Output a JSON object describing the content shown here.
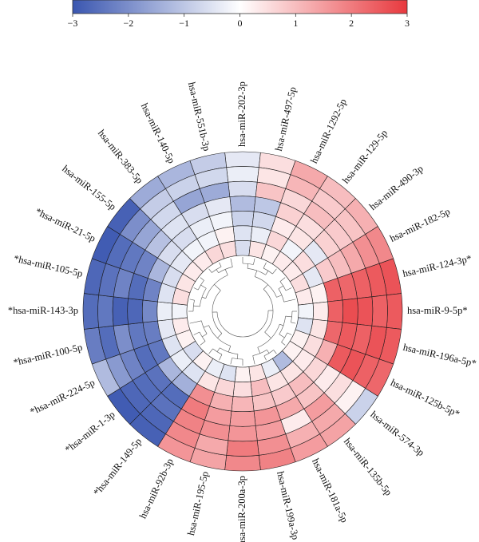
{
  "chart_data": {
    "type": "heatmap",
    "layout": "circular",
    "colorbar": {
      "ticks": [
        -3,
        -2,
        -1,
        0,
        1,
        2,
        3
      ],
      "colors": {
        "low": "#3a56b0",
        "mid": "#ffffff",
        "high": "#e8393e"
      }
    },
    "rows": [
      {
        "label": "hsa-miR-202-3p",
        "values": [
          -0.4,
          -0.3,
          -0.6,
          -1.2,
          -0.8,
          -0.5,
          -0.6
        ]
      },
      {
        "label": "hsa-miR-497-5p",
        "values": [
          0.5,
          0.4,
          0.9,
          -1.0,
          -0.7,
          -0.3,
          0.4
        ]
      },
      {
        "label": "hsa-miR-1292-5p",
        "values": [
          1.3,
          1.1,
          0.6,
          0.7,
          0.3,
          0.6,
          0.2
        ]
      },
      {
        "label": "hsa-miR-129-5p",
        "values": [
          1.0,
          0.8,
          1.0,
          0.5,
          0.4,
          -0.2,
          0.3
        ]
      },
      {
        "label": "hsa-miR-490-3p",
        "values": [
          1.2,
          0.9,
          0.8,
          0.7,
          -0.4,
          0.5,
          0.3
        ]
      },
      {
        "label": "hsa-miR-182-5p",
        "values": [
          1.8,
          1.7,
          1.3,
          1.0,
          0.8,
          -0.4,
          0.5
        ]
      },
      {
        "label": "hsa-miR-124-3p",
        "values": [
          2.6,
          2.5,
          2.4,
          2.3,
          2.4,
          0.2,
          0.3
        ],
        "marker": "*"
      },
      {
        "label": "hsa-miR-9-5p",
        "values": [
          2.5,
          2.4,
          2.6,
          2.7,
          2.4,
          0.3,
          -0.2
        ],
        "marker": "*"
      },
      {
        "label": "hsa-miR-196a-5p",
        "values": [
          2.5,
          2.6,
          2.4,
          2.5,
          2.3,
          0.4,
          -0.5
        ],
        "marker": "*"
      },
      {
        "label": "hsa-miR-125b-5p",
        "values": [
          2.3,
          2.4,
          2.6,
          2.5,
          1.2,
          0.5,
          0.2
        ],
        "marker": "*"
      },
      {
        "label": "hsa-miR-574-3p",
        "values": [
          -0.8,
          0.2,
          0.5,
          0.3,
          0.6,
          0.3,
          0.2
        ]
      },
      {
        "label": "hsa-miR-135b-5p",
        "values": [
          1.4,
          1.3,
          1.5,
          0.9,
          1.0,
          0.4,
          -1.2
        ]
      },
      {
        "label": "hsa-miR-181a-5p",
        "values": [
          1.5,
          1.2,
          0.3,
          1.3,
          0.8,
          0.4,
          -0.3
        ]
      },
      {
        "label": "hsa-miR-199a-3p",
        "values": [
          1.9,
          1.7,
          1.5,
          1.6,
          0.9,
          1.0,
          0.4
        ]
      },
      {
        "label": "hsa-miR-200a-3p",
        "values": [
          1.8,
          2.0,
          1.6,
          1.5,
          1.1,
          0.5,
          0.2
        ]
      },
      {
        "label": "hsa-miR-195-5p",
        "values": [
          1.4,
          1.3,
          1.7,
          1.5,
          1.2,
          0.6,
          -0.5
        ]
      },
      {
        "label": "hsa-miR-92b-3p",
        "values": [
          1.6,
          1.8,
          1.9,
          2.0,
          1.7,
          0.4,
          -0.3
        ]
      },
      {
        "label": "hsa-miR-149-5p",
        "values": [
          -2.8,
          -2.7,
          -2.5,
          -2.6,
          -1.4,
          -0.5,
          0.2
        ],
        "marker": "*"
      },
      {
        "label": "hsa-miR-1-3p",
        "values": [
          -2.9,
          -2.7,
          -2.6,
          -2.5,
          -1.3,
          -0.3,
          -0.6
        ],
        "marker": "*"
      },
      {
        "label": "hsa-miR-224-5p",
        "values": [
          -1.2,
          -1.8,
          -2.2,
          -2.6,
          -2.4,
          -0.5,
          0.2
        ],
        "marker": "*"
      },
      {
        "label": "hsa-miR-100-5p",
        "values": [
          -2.3,
          -2.6,
          -2.0,
          -2.4,
          -2.3,
          -0.4,
          0.3
        ],
        "marker": "*"
      },
      {
        "label": "hsa-miR-143-3p",
        "values": [
          -2.6,
          -2.4,
          -2.8,
          -2.7,
          -2.1,
          -0.3,
          -0.2
        ],
        "marker": "*"
      },
      {
        "label": "hsa-miR-105-5p",
        "values": [
          -2.7,
          -2.5,
          -2.2,
          -2.6,
          -2.2,
          -0.5,
          0.5
        ],
        "marker": "*"
      },
      {
        "label": "hsa-miR-21-5p",
        "values": [
          -2.9,
          -2.6,
          -2.4,
          -2.2,
          -1.3,
          -0.6,
          0.4
        ],
        "marker": "*"
      },
      {
        "label": "hsa-miR-155-5p",
        "values": [
          -2.8,
          -2.0,
          -1.6,
          -1.1,
          -0.6,
          -0.4,
          0.3
        ]
      },
      {
        "label": "hsa-miR-383-5p",
        "values": [
          -1.5,
          -0.9,
          -0.7,
          -0.5,
          -0.6,
          -0.2,
          0.3
        ]
      },
      {
        "label": "hsa-miR-140-5p",
        "values": [
          -1.3,
          -0.8,
          -1.6,
          -0.6,
          -0.3,
          -0.2,
          0.6
        ]
      },
      {
        "label": "hsa-miR-551b-3p",
        "values": [
          -0.9,
          -0.7,
          -1.5,
          -0.4,
          -0.2,
          0.2,
          0.5
        ]
      }
    ]
  }
}
